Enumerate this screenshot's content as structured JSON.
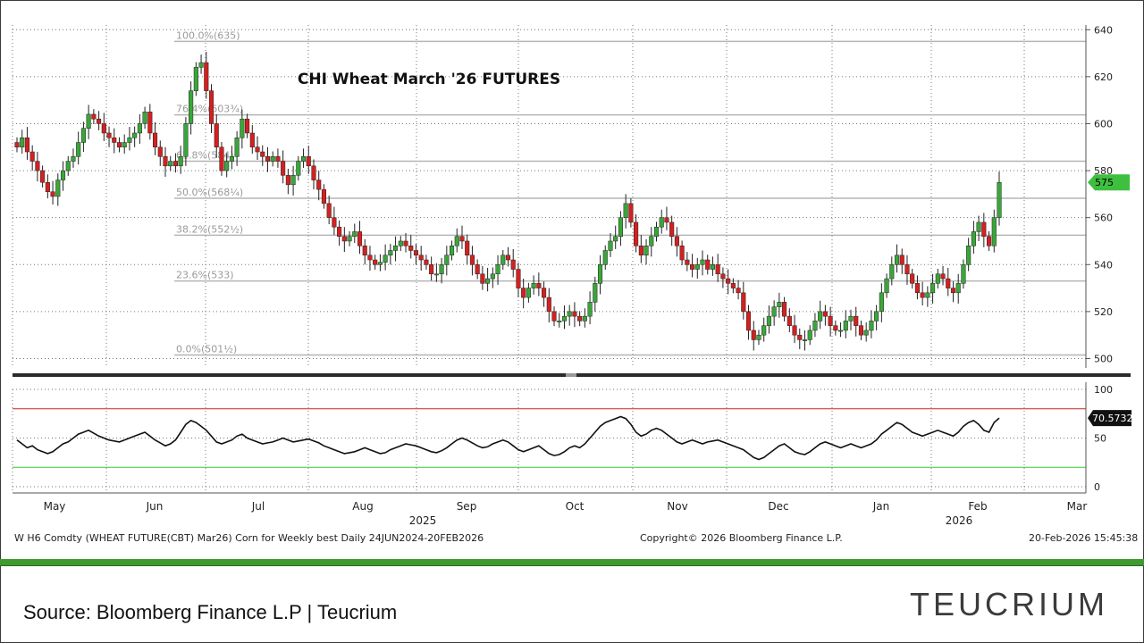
{
  "chart_data": [
    {
      "type": "candlestick",
      "title": "CHI Wheat March '26 FUTURES",
      "x_months": [
        "May",
        "Jun",
        "Jul",
        "Aug",
        "Sep",
        "Oct",
        "Nov",
        "Dec",
        "Jan",
        "Feb",
        "Mar"
      ],
      "year_labels": [
        "2025",
        "2026"
      ],
      "y_ticks": [
        500,
        520,
        540,
        560,
        580,
        600,
        620,
        640
      ],
      "ylim": [
        496,
        642
      ],
      "last_price_label": "575",
      "fibonacci": [
        {
          "label": "100.0%(635)",
          "value": 635
        },
        {
          "label": "76.4%(603¾)",
          "value": 603.75
        },
        {
          "label": "61.8%(584)",
          "value": 584
        },
        {
          "label": "50.0%(568¼)",
          "value": 568.25
        },
        {
          "label": "38.2%(552½)",
          "value": 552.5
        },
        {
          "label": "23.6%(533)",
          "value": 533
        },
        {
          "label": "0.0%(501½)",
          "value": 501.5
        }
      ],
      "closes": [
        590,
        594,
        588,
        584,
        580,
        575,
        571,
        569,
        576,
        580,
        584,
        586,
        592,
        598,
        604,
        602,
        600,
        596,
        594,
        592,
        590,
        592,
        594,
        596,
        600,
        605,
        596,
        590,
        586,
        582,
        584,
        582,
        586,
        600,
        614,
        624,
        626,
        614,
        600,
        590,
        580,
        584,
        586,
        594,
        602,
        596,
        590,
        588,
        586,
        584,
        586,
        584,
        578,
        574,
        578,
        584,
        586,
        582,
        576,
        572,
        566,
        560,
        556,
        552,
        550,
        552,
        554,
        548,
        544,
        542,
        540,
        541,
        544,
        546,
        548,
        550,
        548,
        546,
        544,
        542,
        540,
        536,
        536,
        540,
        544,
        548,
        552,
        550,
        544,
        540,
        536,
        532,
        534,
        536,
        540,
        544,
        542,
        538,
        530,
        526,
        530,
        532,
        530,
        526,
        520,
        516,
        516,
        518,
        520,
        518,
        516,
        518,
        524,
        532,
        540,
        546,
        550,
        552,
        560,
        566,
        558,
        548,
        544,
        548,
        552,
        556,
        560,
        558,
        552,
        548,
        542,
        540,
        538,
        540,
        542,
        538,
        540,
        536,
        534,
        532,
        530,
        528,
        520,
        512,
        508,
        510,
        514,
        518,
        522,
        524,
        518,
        514,
        510,
        508,
        508,
        512,
        516,
        520,
        518,
        514,
        512,
        512,
        516,
        518,
        514,
        510,
        512,
        516,
        520,
        528,
        534,
        540,
        544,
        540,
        536,
        532,
        528,
        526,
        528,
        532,
        536,
        534,
        530,
        528,
        532,
        540,
        548,
        554,
        558,
        552,
        548,
        560,
        575
      ],
      "rsi_yticks": [
        0,
        50,
        100
      ],
      "rsi_levels": {
        "overbought": 80,
        "oversold": 20
      },
      "rsi_last_label": "70.5732",
      "rsi": [
        48,
        44,
        40,
        42,
        38,
        36,
        34,
        36,
        40,
        44,
        46,
        50,
        54,
        56,
        58,
        55,
        52,
        50,
        48,
        47,
        46,
        48,
        50,
        52,
        54,
        56,
        52,
        48,
        45,
        42,
        44,
        48,
        56,
        64,
        68,
        66,
        62,
        58,
        52,
        46,
        44,
        46,
        48,
        52,
        54,
        50,
        48,
        46,
        44,
        45,
        46,
        48,
        50,
        48,
        46,
        47,
        48,
        49,
        47,
        45,
        42,
        40,
        38,
        36,
        34,
        35,
        36,
        38,
        40,
        38,
        36,
        34,
        35,
        38,
        40,
        42,
        44,
        43,
        42,
        40,
        38,
        36,
        35,
        37,
        40,
        44,
        48,
        50,
        48,
        45,
        42,
        40,
        41,
        44,
        46,
        48,
        46,
        42,
        38,
        36,
        38,
        40,
        42,
        38,
        34,
        32,
        33,
        36,
        40,
        42,
        40,
        44,
        50,
        56,
        62,
        66,
        68,
        70,
        72,
        70,
        64,
        56,
        52,
        54,
        58,
        60,
        58,
        54,
        50,
        46,
        44,
        46,
        48,
        46,
        44,
        46,
        47,
        48,
        46,
        44,
        42,
        40,
        38,
        34,
        30,
        28,
        30,
        34,
        38,
        42,
        44,
        40,
        36,
        34,
        33,
        36,
        40,
        44,
        46,
        44,
        42,
        40,
        42,
        44,
        42,
        40,
        42,
        44,
        48,
        54,
        58,
        62,
        66,
        64,
        60,
        56,
        54,
        52,
        54,
        56,
        58,
        56,
        54,
        52,
        56,
        62,
        66,
        68,
        64,
        58,
        56,
        66,
        70.5732
      ]
    }
  ],
  "footer": {
    "left": "W H6 Comdty (WHEAT FUTURE(CBT) Mar26) Corn for Weekly best Daily 24JUN2024-20FEB2026",
    "center": "Copyright© 2026 Bloomberg Finance L.P.",
    "right": "20-Feb-2026 15:45:38"
  },
  "caption": {
    "source": "Source: Bloomberg Finance L.P | Teucrium",
    "logo": "TEUCRIUM"
  },
  "colors": {
    "up": "#3aa63a",
    "down": "#d42020",
    "rsi_line": "#111111",
    "overbought": "#cc2222",
    "oversold": "#33cc33",
    "fib": "#b5b5b5",
    "brand_green": "#3e9a2d"
  }
}
